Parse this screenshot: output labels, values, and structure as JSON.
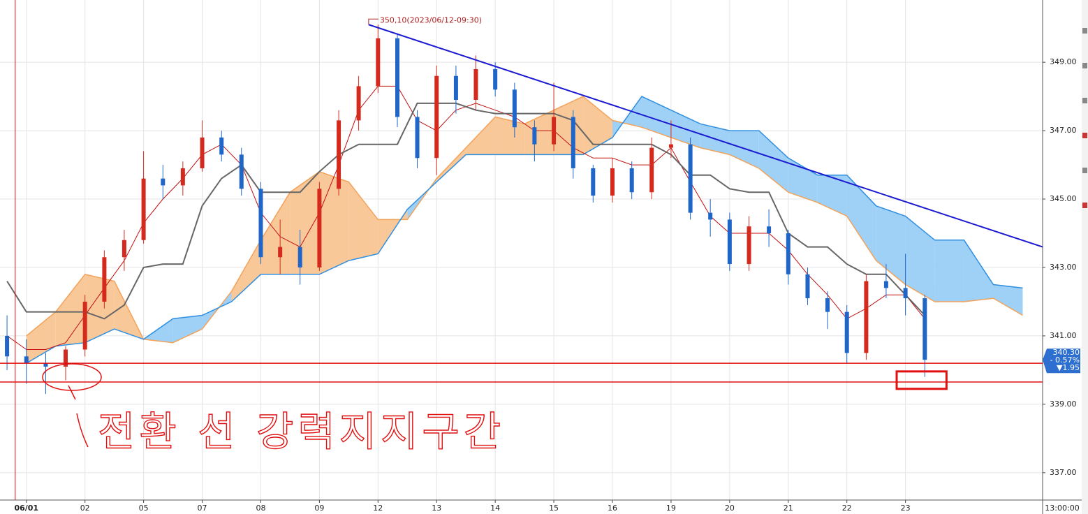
{
  "chart_data": {
    "type": "candlestick",
    "annotation": "350,10(2023/06/12-09:30)",
    "note": "전환 선 강력지지구간",
    "time_label": "13:00:00",
    "xlim": [
      -0.45,
      17.34
    ],
    "ylim": [
      336.2,
      350.82
    ],
    "xticks": [
      {
        "value": 0,
        "label": "06/01"
      },
      {
        "value": 1,
        "label": "02"
      },
      {
        "value": 2,
        "label": "05"
      },
      {
        "value": 3,
        "label": "07"
      },
      {
        "value": 4,
        "label": "08"
      },
      {
        "value": 5,
        "label": "09"
      },
      {
        "value": 6,
        "label": "12"
      },
      {
        "value": 7,
        "label": "13"
      },
      {
        "value": 8,
        "label": "14"
      },
      {
        "value": 9,
        "label": "15"
      },
      {
        "value": 10,
        "label": "16"
      },
      {
        "value": 11,
        "label": "19"
      },
      {
        "value": 12,
        "label": "20"
      },
      {
        "value": 13,
        "label": "21"
      },
      {
        "value": 14,
        "label": "22"
      },
      {
        "value": 15,
        "label": "23"
      }
    ],
    "yticks": [
      {
        "value": 337,
        "label": "337.00"
      },
      {
        "value": 339,
        "label": "339.00"
      },
      {
        "value": 341,
        "label": "341.00"
      },
      {
        "value": 343,
        "label": "343.00"
      },
      {
        "value": 345,
        "label": "345.00"
      },
      {
        "value": 347,
        "label": "347.00"
      },
      {
        "value": 349,
        "label": "349.00"
      }
    ],
    "grid": true,
    "up_color": "#d42a1e",
    "down_color": "#1f66c8",
    "x": [
      -0.33,
      0,
      0.33,
      0.67,
      1,
      1.33,
      1.67,
      2,
      2.33,
      2.67,
      3,
      3.33,
      3.67,
      4,
      4.33,
      4.67,
      5,
      5.33,
      5.67,
      6,
      6.33,
      6.67,
      7,
      7.33,
      7.67,
      8,
      8.33,
      8.67,
      9,
      9.33,
      9.67,
      10,
      10.33,
      10.67,
      11,
      11.33,
      11.67,
      12,
      12.33,
      12.67,
      13,
      13.33,
      13.67,
      14,
      14.33,
      14.67,
      15,
      15.33
    ],
    "open": [
      341.0,
      340.4,
      340.2,
      340.1,
      340.6,
      342.0,
      343.3,
      343.8,
      345.6,
      345.4,
      345.9,
      346.8,
      346.3,
      345.3,
      343.3,
      343.6,
      343.0,
      345.3,
      347.3,
      348.3,
      349.7,
      347.4,
      346.2,
      348.6,
      347.9,
      348.8,
      348.2,
      347.1,
      346.6,
      347.4,
      345.9,
      345.1,
      345.9,
      345.2,
      346.5,
      346.6,
      344.6,
      344.4,
      343.1,
      344.2,
      344.0,
      342.8,
      342.1,
      341.7,
      340.5,
      342.6,
      342.4,
      342.1
    ],
    "high": [
      341.6,
      340.9,
      340.5,
      340.7,
      342.2,
      343.5,
      344.1,
      346.4,
      346.0,
      346.1,
      347.3,
      347.0,
      346.5,
      345.5,
      344.4,
      344.1,
      345.5,
      347.6,
      348.6,
      350.1,
      349.8,
      347.6,
      348.9,
      348.9,
      349.2,
      349.0,
      348.4,
      347.3,
      348.4,
      347.6,
      346.0,
      346.2,
      346.1,
      346.8,
      347.3,
      346.8,
      345.0,
      344.6,
      344.5,
      344.7,
      344.1,
      343.0,
      342.3,
      341.9,
      342.8,
      343.1,
      343.4,
      342.2
    ],
    "low": [
      340.0,
      339.6,
      339.3,
      339.7,
      340.4,
      341.8,
      342.9,
      343.7,
      345.0,
      345.1,
      345.8,
      346.1,
      345.1,
      343.1,
      342.8,
      342.5,
      342.9,
      345.1,
      347.0,
      348.1,
      347.1,
      345.9,
      345.7,
      347.5,
      347.6,
      348.0,
      346.8,
      346.1,
      346.4,
      345.6,
      344.9,
      344.9,
      345.0,
      345.0,
      346.2,
      344.4,
      343.9,
      342.9,
      342.9,
      343.6,
      342.5,
      341.9,
      341.2,
      340.2,
      340.3,
      342.1,
      341.6,
      339.8
    ],
    "close": [
      340.4,
      340.2,
      340.1,
      340.6,
      342.0,
      343.3,
      343.8,
      345.6,
      345.4,
      345.9,
      346.8,
      346.3,
      345.3,
      343.3,
      343.6,
      343.0,
      345.3,
      347.3,
      348.3,
      349.7,
      347.4,
      346.2,
      348.6,
      347.9,
      348.8,
      348.2,
      347.1,
      346.6,
      347.4,
      345.9,
      345.1,
      345.9,
      345.2,
      346.5,
      346.6,
      344.6,
      344.4,
      343.1,
      344.2,
      344.0,
      342.8,
      342.1,
      341.7,
      340.5,
      342.6,
      342.4,
      342.1,
      340.3
    ],
    "lines": [
      {
        "color": "#c01010",
        "values": [
          341.0,
          340.6,
          340.6,
          340.8,
          341.6,
          342.4,
          343.2,
          344.3,
          345.0,
          345.6,
          346.3,
          346.6,
          346.0,
          344.6,
          343.9,
          343.6,
          344.6,
          346.0,
          347.6,
          348.3,
          348.3,
          347.3,
          347.0,
          347.6,
          347.8,
          347.6,
          347.4,
          347.0,
          347.0,
          346.5,
          346.2,
          346.2,
          346.0,
          346.0,
          346.5,
          345.5,
          344.5,
          344.0,
          344.0,
          344.0,
          343.5,
          342.8,
          342.2,
          341.5,
          341.8,
          342.2,
          342.2,
          341.5
        ]
      },
      {
        "color": "#666666",
        "values": [
          342.6,
          341.7,
          341.7,
          341.7,
          341.7,
          341.5,
          341.9,
          343.0,
          343.1,
          343.1,
          344.8,
          345.6,
          346.0,
          345.2,
          345.2,
          345.2,
          345.8,
          346.3,
          346.6,
          346.6,
          346.6,
          347.8,
          347.8,
          347.8,
          347.6,
          347.5,
          347.5,
          347.5,
          347.5,
          347.3,
          346.6,
          346.6,
          346.6,
          346.6,
          346.3,
          345.7,
          345.7,
          345.3,
          345.2,
          345.2,
          344.0,
          343.6,
          343.6,
          343.1,
          342.8,
          342.8,
          342.2,
          341.6
        ]
      }
    ],
    "cloud": {
      "x": [
        0,
        0.5,
        1,
        1.5,
        2,
        2.5,
        3,
        3.5,
        4,
        4.5,
        5,
        5.5,
        6,
        6.5,
        7,
        7.5,
        8,
        8.5,
        9,
        9.5,
        10,
        10.5,
        11,
        11.5,
        12,
        12.5,
        13,
        13.5,
        14,
        14.5,
        15,
        15.5,
        16,
        16.5,
        17
      ],
      "span_a": [
        341.0,
        341.7,
        342.8,
        342.6,
        340.9,
        340.8,
        341.2,
        342.3,
        343.8,
        345.2,
        345.8,
        345.5,
        344.4,
        344.4,
        345.6,
        346.5,
        347.4,
        347.2,
        347.6,
        348.0,
        347.3,
        347.1,
        346.8,
        346.5,
        346.3,
        345.9,
        345.2,
        344.9,
        344.5,
        343.2,
        342.5,
        342.0,
        342.0,
        342.1,
        341.6
      ],
      "span_b": [
        340.2,
        340.7,
        340.8,
        341.2,
        340.9,
        341.5,
        341.6,
        342.0,
        342.8,
        342.8,
        342.8,
        343.2,
        343.4,
        344.7,
        345.5,
        346.3,
        346.3,
        346.3,
        346.3,
        346.3,
        346.8,
        348.0,
        347.6,
        347.2,
        347.0,
        347.0,
        346.2,
        345.7,
        345.7,
        344.8,
        344.5,
        343.8,
        343.8,
        342.5,
        342.4
      ],
      "span_a_color": "#f3a25a",
      "span_b_color": "#2f8fe0",
      "bull_fill": "#f9c898",
      "bear_fill": "#9fd0f6"
    },
    "trendline": {
      "color": "#1a1ad0",
      "x": [
        5.84,
        17.34
      ],
      "values": [
        350.1,
        343.6
      ]
    },
    "hlines": {
      "color": "#e01010",
      "values": [
        340.2,
        339.65
      ]
    },
    "vline": {
      "color": "#e01010",
      "x": -0.19
    },
    "highlight": {
      "color": "#e01010",
      "x": [
        14.85,
        15.7
      ],
      "values": [
        339.96,
        339.45
      ]
    },
    "last_price": {
      "value": 340.3,
      "label": "340.30",
      "change": "- 0.57%",
      "diff": "▼1.95",
      "color": "#2c6fd0"
    }
  }
}
